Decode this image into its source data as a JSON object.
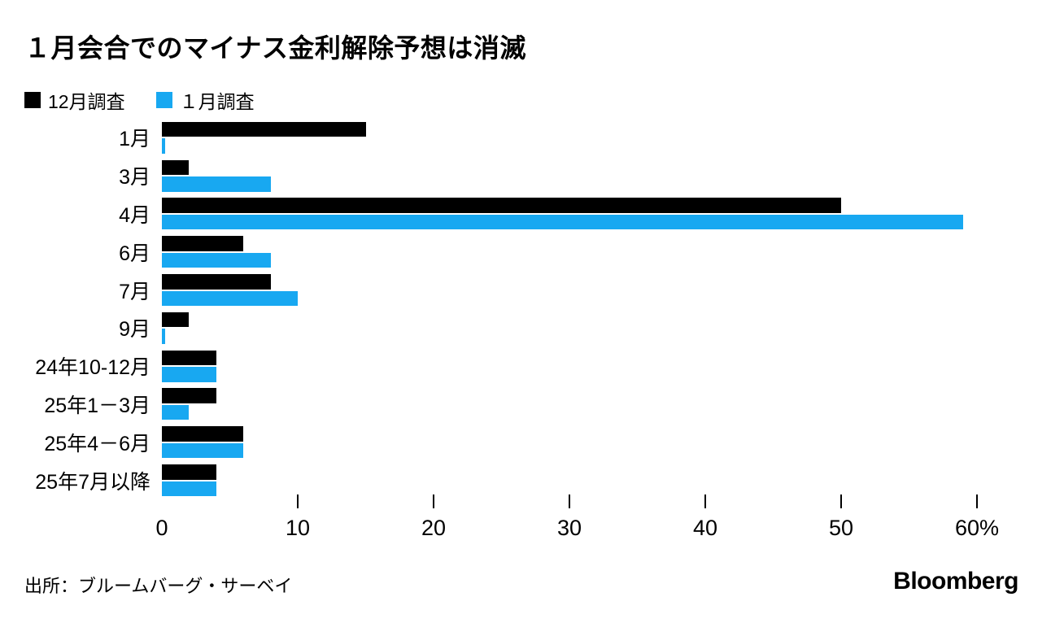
{
  "chart_data": {
    "type": "bar",
    "orientation": "horizontal",
    "title": "１月会合でのマイナス金利解除予想は消滅",
    "categories": [
      "1月",
      "3月",
      "4月",
      "6月",
      "7月",
      "9月",
      "24年10-12月",
      "25年1－3月",
      "25年4－6月",
      "25年7月以降"
    ],
    "series": [
      {
        "name": "12月調査",
        "color": "#000000",
        "values": [
          15,
          2,
          50,
          6,
          8,
          2,
          4,
          4,
          6,
          4
        ]
      },
      {
        "name": "１月調査",
        "color": "#18a8f1",
        "values": [
          0.25,
          8,
          59,
          8,
          10,
          0.25,
          4,
          2,
          6,
          4
        ]
      }
    ],
    "xlabel": "",
    "ylabel": "",
    "xlim": [
      0,
      60
    ],
    "unit": "%",
    "x_ticks": [
      0,
      10,
      20,
      30,
      40,
      50,
      60
    ],
    "x_tick_labels": [
      "0",
      "10",
      "20",
      "30",
      "40",
      "50",
      "60%"
    ],
    "grid": false,
    "legend_position": "top-left"
  },
  "footer": {
    "source": "出所：ブルームバーグ・サーベイ",
    "brand": "Bloomberg"
  }
}
